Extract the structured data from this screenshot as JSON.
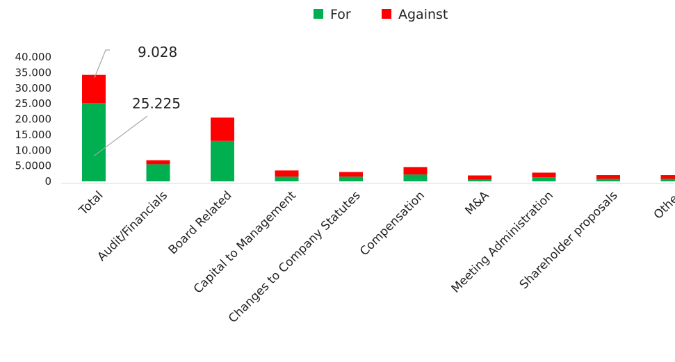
{
  "chart_data": {
    "type": "bar",
    "stacked": true,
    "title": "",
    "xlabel": "",
    "ylabel": "",
    "ylim": [
      0,
      40000
    ],
    "yticks": [
      "0",
      "5.0000",
      "10.000",
      "15.000",
      "20.000",
      "25.000",
      "30.000",
      "35.000",
      "40.000"
    ],
    "grid": false,
    "legend_position": "top-center",
    "categories": [
      "Total",
      "Audit/Financials",
      "Board Related",
      "Capital to Management",
      "Changes to Company Statutes",
      "Compensation",
      "M&A",
      "Meeting Administration",
      "Shareholder proposals",
      "Other"
    ],
    "series": [
      {
        "name": "For",
        "color": "#00b050",
        "values": [
          25225,
          5500,
          13000,
          1500,
          1500,
          2200,
          500,
          1300,
          800,
          800
        ]
      },
      {
        "name": "Against",
        "color": "#ff0000",
        "values": [
          9028,
          1300,
          7500,
          2000,
          1500,
          2400,
          1400,
          1500,
          1200,
          1200
        ]
      }
    ],
    "annotations": [
      {
        "text": "9.028",
        "category": "Total",
        "series": "Against"
      },
      {
        "text": "25.225",
        "category": "Total",
        "series": "For"
      }
    ]
  }
}
